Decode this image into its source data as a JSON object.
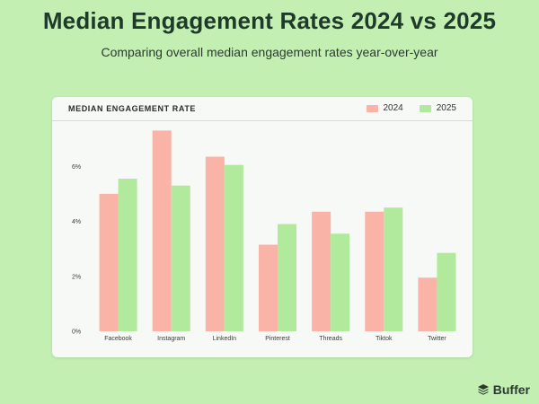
{
  "page": {
    "title": "Median Engagement Rates 2024 vs 2025",
    "subtitle": "Comparing overall median engagement rates year-over-year",
    "brand": "Buffer"
  },
  "colors": {
    "series_2024": "#f9b3a7",
    "series_2025": "#b1ea9d"
  },
  "chart_data": {
    "type": "bar",
    "title": "MEDIAN ENGAGEMENT RATE",
    "xlabel": "",
    "ylabel": "",
    "categories": [
      "Facebook",
      "Instagram",
      "LinkedIn",
      "Pinterest",
      "Threads",
      "Tiktok",
      "Twitter"
    ],
    "series": [
      {
        "name": "2024",
        "values": [
          5.0,
          7.3,
          6.35,
          3.15,
          4.35,
          4.35,
          1.95
        ]
      },
      {
        "name": "2025",
        "values": [
          5.55,
          5.3,
          6.05,
          3.9,
          3.55,
          4.5,
          2.85
        ]
      }
    ],
    "ylim": [
      0,
      8
    ],
    "yticks": [
      0,
      2,
      4,
      6
    ],
    "ytick_labels": [
      "0%",
      "2%",
      "4%",
      "6%"
    ],
    "legend_position": "top-right",
    "grid": false
  }
}
